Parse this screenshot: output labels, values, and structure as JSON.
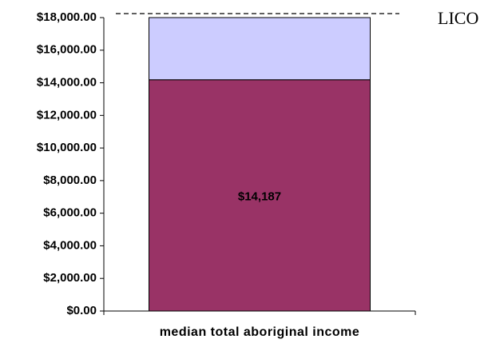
{
  "chart_data": {
    "type": "stacked_bar",
    "categories": [
      "median total aboriginal income"
    ],
    "series": [
      {
        "color": "#993366",
        "values": [
          14187
        ],
        "value_labels": [
          "$14,187"
        ]
      },
      {
        "color": "#ccccff",
        "values": [
          3813
        ]
      }
    ],
    "ylim": [
      0,
      18000
    ],
    "yticks": [
      {
        "value": 0,
        "label": "$0.00"
      },
      {
        "value": 2000,
        "label": "$2,000.00"
      },
      {
        "value": 4000,
        "label": "$4,000.00"
      },
      {
        "value": 6000,
        "label": "$6,000.00"
      },
      {
        "value": 8000,
        "label": "$8,000.00"
      },
      {
        "value": 10000,
        "label": "$10,000.00"
      },
      {
        "value": 12000,
        "label": "$12,000.00"
      },
      {
        "value": 14000,
        "label": "$14,000.00"
      },
      {
        "value": 16000,
        "label": "$16,000.00"
      },
      {
        "value": 18000,
        "label": "$18,000.00"
      }
    ],
    "reference_line": {
      "value": 18000,
      "label": "LICO"
    }
  }
}
